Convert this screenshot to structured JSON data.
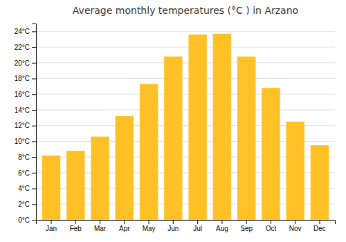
{
  "chart_data": {
    "type": "bar",
    "title": "Average monthly temperatures (°C ) in Arzano",
    "categories": [
      "Jan",
      "Feb",
      "Mar",
      "Apr",
      "May",
      "Jun",
      "Jul",
      "Aug",
      "Sep",
      "Oct",
      "Nov",
      "Dec"
    ],
    "values": [
      8.2,
      8.8,
      10.6,
      13.2,
      17.3,
      20.8,
      23.6,
      23.7,
      20.8,
      16.8,
      12.5,
      9.5
    ],
    "color": "#FFC125",
    "ylim": [
      0,
      25
    ],
    "yticks": [
      {
        "value": 0,
        "label": "0°C"
      },
      {
        "value": 2,
        "label": "2°C"
      },
      {
        "value": 4,
        "label": "4°C"
      },
      {
        "value": 6,
        "label": "6°C"
      },
      {
        "value": 8,
        "label": "8°C"
      },
      {
        "value": 10,
        "label": "10°C"
      },
      {
        "value": 12,
        "label": "12°C"
      },
      {
        "value": 14,
        "label": "14°C"
      },
      {
        "value": 16,
        "label": "16°C"
      },
      {
        "value": 18,
        "label": "18°C"
      },
      {
        "value": 20,
        "label": "20°C"
      },
      {
        "value": 22,
        "label": "22°C"
      },
      {
        "value": 24,
        "label": "24°C"
      }
    ],
    "grid": true
  }
}
